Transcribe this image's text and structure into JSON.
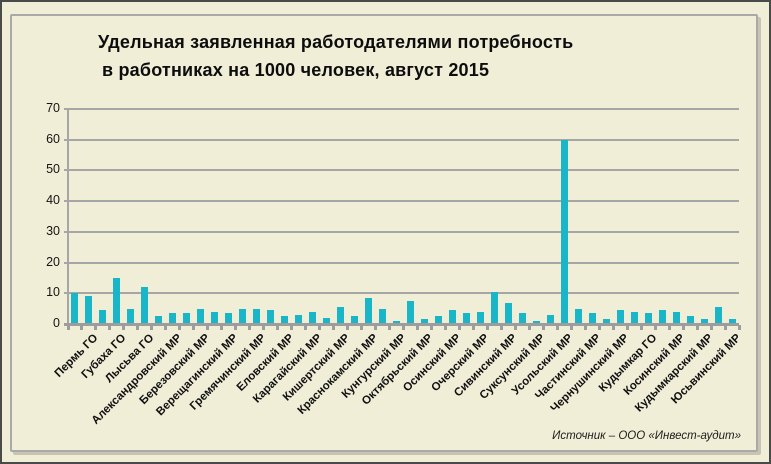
{
  "title": {
    "line1": "Удельная заявленная работодателями потребность",
    "line2": "в работниках на 1000 человек, август 2015"
  },
  "source": "Источник – ООО «Инвест-аудит»",
  "colors": {
    "bar": "#1ab5c6",
    "background": "#f1eed8",
    "gridline": "#a6a6a6",
    "text": "#0d0d0d"
  },
  "chart_data": {
    "type": "bar",
    "title": "Удельная заявленная работодателями потребность в работниках на 1000 человек, август 2015",
    "xlabel": "",
    "ylabel": "",
    "ylim": [
      0,
      70
    ],
    "yticks": [
      0,
      10,
      20,
      30,
      40,
      50,
      60,
      70
    ],
    "grid": true,
    "legend": "none",
    "label_interval": 2,
    "categories": [
      "",
      "Пермь ГО",
      "",
      "Губаха ГО",
      "",
      "Лысьва ГО",
      "",
      "Александровский МР",
      "",
      "Березовский МР",
      "",
      "Верещагинский МР",
      "",
      "Гремячинский МР",
      "",
      "Еловский МР",
      "",
      "Карагайский МР",
      "",
      "Кишертский МР",
      "",
      "Краснокамский МР",
      "",
      "Кунгурский МР",
      "",
      "Октябрьский МР",
      "",
      "Осинский МР",
      "",
      "Очерский МР",
      "",
      "Сивинский МР",
      "",
      "Суксунский МР",
      "",
      "Усольский МР",
      "",
      "Частинский МР",
      "",
      "Чернушинский МР",
      "",
      "Кудымкар ГО",
      "",
      "Косинский  МР",
      "",
      "Кудымкарский МР",
      "",
      "Юсьвинский МР"
    ],
    "values": [
      10,
      9,
      4.5,
      15,
      5,
      12,
      2.5,
      3.5,
      3.5,
      5,
      4,
      3.5,
      5,
      5,
      4.5,
      2.5,
      3,
      4,
      2,
      5.5,
      2.5,
      8.5,
      5,
      1,
      7.5,
      1.5,
      2.5,
      4.5,
      3.5,
      4,
      10.5,
      7,
      3.5,
      1,
      3,
      60,
      5,
      3.5,
      1.5,
      4.5,
      4,
      3.5,
      4.5,
      4,
      2.5,
      1.5,
      5.5,
      1.5
    ]
  }
}
